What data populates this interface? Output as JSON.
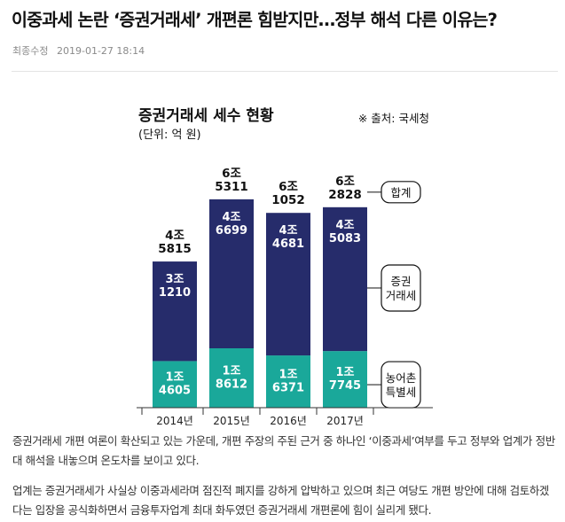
{
  "article": {
    "headline": "이중과세 논란 ‘증권거래세’ 개편론 힘받지만…정부 해석 다른 이유는?",
    "modified_label": "최종수정",
    "modified_time": "2019-01-27 18:14",
    "paragraphs": [
      "증권거래세 개편 여론이 확산되고 있는 가운데, 개편 주장의 주된 근거 중 하나인 ‘이중과세’여부를 두고 정부와 업계가 정반대 해석을 내놓으며 온도차를 보이고 있다.",
      "업계는 증권거래세가 사실상 이중과세라며 점진적 폐지를 강하게 압박하고 있으며 최근 여당도 개편 방안에 대해 검토하겠다는 입장을 공식화하면서 금융투자업계 최대 화두였던 증권거래세 개편론에 힘이 실리게 됐다."
    ]
  },
  "chart_data": {
    "type": "bar",
    "stacked": true,
    "title": "증권거래세 세수 현황",
    "subtitle": "(단위: 억 원)",
    "source": "※ 출처: 국세청",
    "categories": [
      "2014년",
      "2015년",
      "2016년",
      "2017년"
    ],
    "series": [
      {
        "name": "농어촌 특별세",
        "values": [
          14605,
          18612,
          16371,
          17745
        ],
        "labels": [
          [
            "1조",
            "4605"
          ],
          [
            "1조",
            "8612"
          ],
          [
            "1조",
            "6371"
          ],
          [
            "1조",
            "7745"
          ]
        ],
        "color": "#1aa89a"
      },
      {
        "name": "증권 거래세",
        "values": [
          31210,
          46699,
          44681,
          45083
        ],
        "labels": [
          [
            "3조",
            "1210"
          ],
          [
            "4조",
            "6699"
          ],
          [
            "4조",
            "4681"
          ],
          [
            "4조",
            "5083"
          ]
        ],
        "color": "#262c6b"
      }
    ],
    "totals": {
      "name": "합계",
      "values": [
        45815,
        65311,
        61052,
        62828
      ],
      "labels": [
        [
          "4조",
          "5815"
        ],
        [
          "6조",
          "5311"
        ],
        [
          "6조",
          "1052"
        ],
        [
          "6조",
          "2828"
        ]
      ]
    },
    "legend_labels": {
      "total": [
        "합계"
      ],
      "main": [
        "증권",
        "거래세"
      ],
      "special": [
        "농어촌",
        "특별세"
      ]
    },
    "legend_position": "right",
    "grid": false
  }
}
